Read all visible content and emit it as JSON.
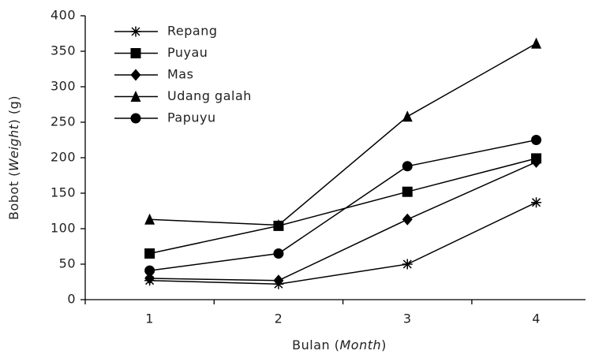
{
  "chart_data": {
    "type": "line",
    "xlabel_parts": [
      "Bulan (",
      "Month",
      ")"
    ],
    "ylabel_parts": [
      "Bobot (",
      "Weight",
      ") (g)"
    ],
    "categories": [
      "1",
      "2",
      "3",
      "4"
    ],
    "series": [
      {
        "name": "Repang",
        "color": "#000000",
        "marker": "star",
        "values": [
          27,
          22,
          50,
          137
        ]
      },
      {
        "name": "Puyau",
        "color": "#000000",
        "marker": "square",
        "values": [
          65,
          104,
          152,
          199
        ]
      },
      {
        "name": "Mas",
        "color": "#000000",
        "marker": "diamond",
        "values": [
          30,
          27,
          113,
          194
        ]
      },
      {
        "name": "Udang galah",
        "color": "#000000",
        "marker": "triangle",
        "values": [
          113,
          105,
          258,
          361
        ]
      },
      {
        "name": "Papuyu",
        "color": "#000000",
        "marker": "circle",
        "values": [
          41,
          65,
          188,
          225
        ]
      }
    ],
    "ylim": [
      0,
      400
    ],
    "yticks": [
      0,
      50,
      100,
      150,
      200,
      250,
      300,
      350,
      400
    ],
    "grid": false,
    "legend": "upper-left"
  }
}
